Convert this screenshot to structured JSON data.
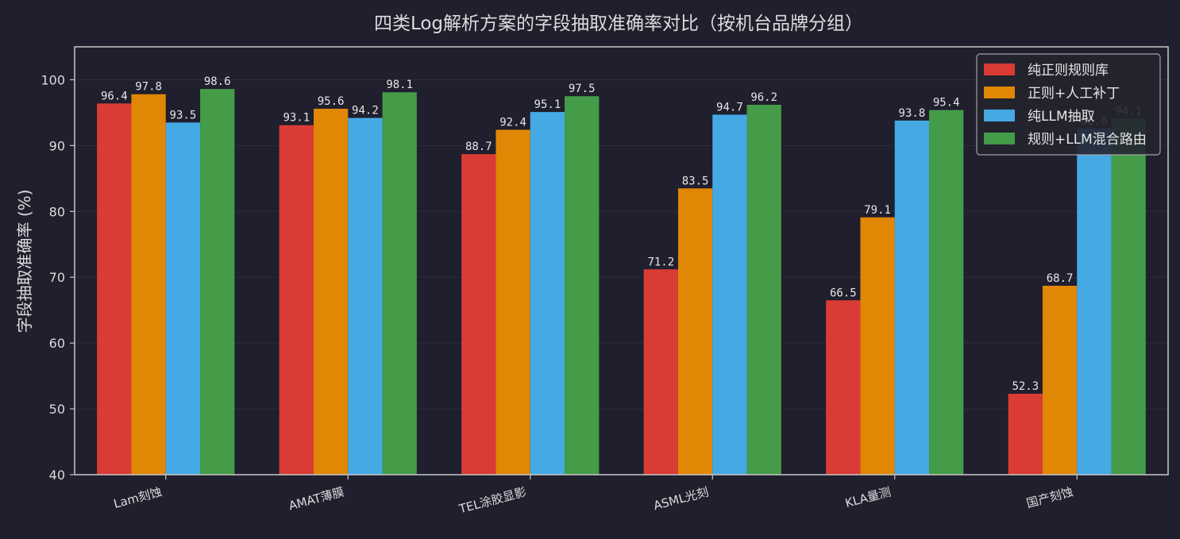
{
  "chart_data": {
    "type": "bar",
    "title": "四类Log解析方案的字段抽取准确率对比（按机台品牌分组）",
    "xlabel": "",
    "ylabel": "字段抽取准确率 (%)",
    "ylim": [
      40,
      105
    ],
    "yticks": [
      40,
      50,
      60,
      70,
      80,
      90,
      100
    ],
    "grid": true,
    "legend_position": "top-right",
    "categories": [
      "Lam刻蚀",
      "AMAT薄膜",
      "TEL涂胶显影",
      "ASML光刻",
      "KLA量测",
      "国产刻蚀"
    ],
    "series": [
      {
        "name": "纯正则规则库",
        "color": "#d93c35",
        "values": [
          96.4,
          93.1,
          88.7,
          71.2,
          66.5,
          52.3
        ]
      },
      {
        "name": "正则+人工补丁",
        "color": "#e08705",
        "values": [
          97.8,
          95.6,
          92.4,
          83.5,
          79.1,
          68.7
        ]
      },
      {
        "name": "纯LLM抽取",
        "color": "#45a9e4",
        "values": [
          93.5,
          94.2,
          95.1,
          94.7,
          93.8,
          92.6
        ]
      },
      {
        "name": "规则+LLM混合路由",
        "color": "#449b48",
        "values": [
          98.6,
          98.1,
          97.5,
          96.2,
          95.4,
          94.1
        ]
      }
    ]
  },
  "colors": {
    "background": "#1f1f2e",
    "axes_edge": "#c8c8c8",
    "grid": "#2c2c3c",
    "text": "#dcdcdc"
  }
}
